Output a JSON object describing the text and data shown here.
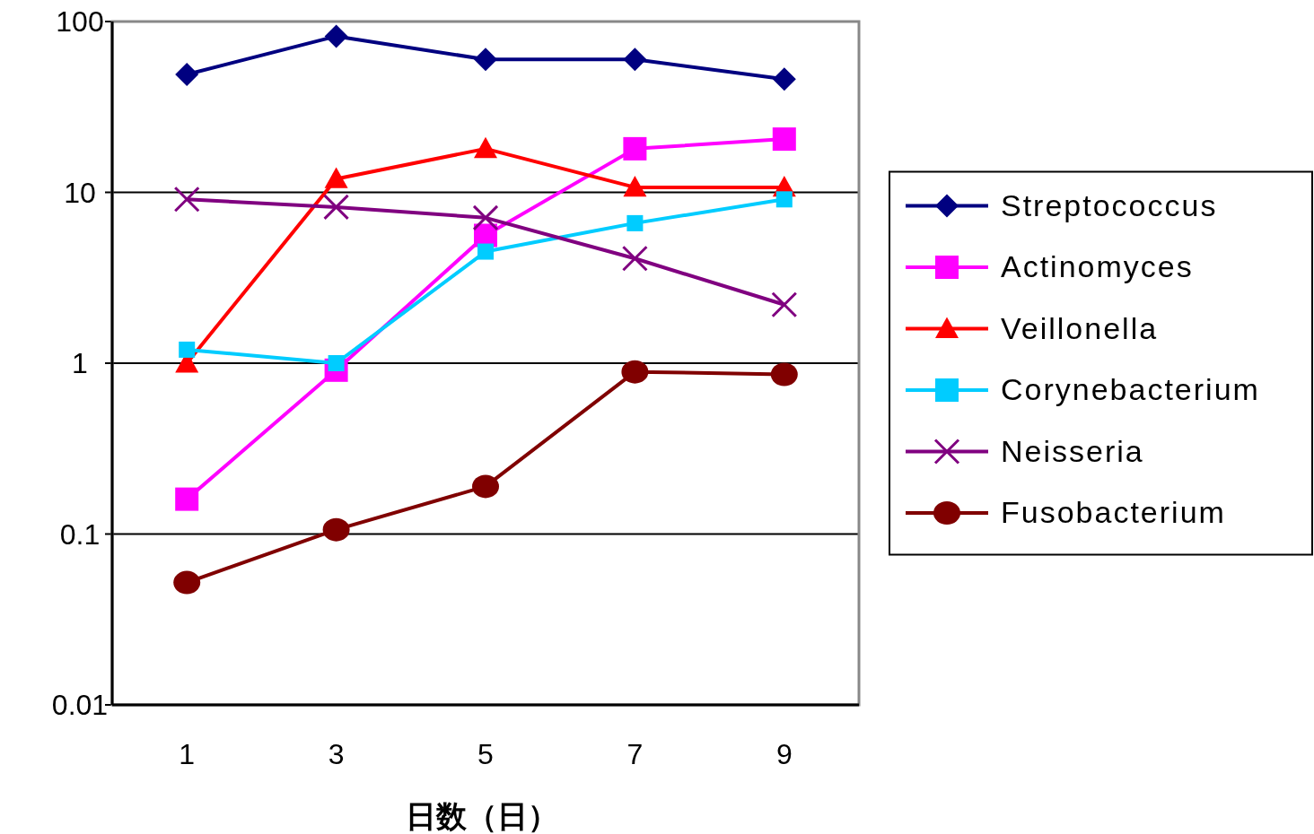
{
  "chart_data": {
    "type": "line",
    "xlabel": "日数（日）",
    "categories": [
      "1",
      "3",
      "5",
      "7",
      "9"
    ],
    "log": true,
    "ylim": [
      0.01,
      100
    ],
    "yticks": [
      0.01,
      0.1,
      1,
      10,
      100
    ],
    "grid": "y",
    "legend": "right",
    "series": [
      {
        "name": "Streptococcus",
        "color": "#000080",
        "marker": "diamond",
        "values": [
          49,
          82,
          60,
          60,
          46
        ]
      },
      {
        "name": "Actinomyces",
        "color": "#ff00ff",
        "marker": "square",
        "values": [
          0.16,
          0.91,
          5.6,
          18,
          20.5
        ]
      },
      {
        "name": "Veillonella",
        "color": "#ff0000",
        "marker": "triangle",
        "values": [
          1.0,
          12,
          18,
          10.7,
          10.7
        ]
      },
      {
        "name": "Corynebacterium",
        "color": "#00ccff",
        "marker": "square",
        "values": [
          1.2,
          1.0,
          4.5,
          6.6,
          9.1
        ]
      },
      {
        "name": "Neisseria",
        "color": "#800080",
        "marker": "cross",
        "values": [
          9.1,
          8.2,
          7.1,
          4.1,
          2.2
        ]
      },
      {
        "name": "Fusobacterium",
        "color": "#800000",
        "marker": "circle",
        "values": [
          0.052,
          0.106,
          0.19,
          0.89,
          0.86
        ]
      }
    ]
  }
}
